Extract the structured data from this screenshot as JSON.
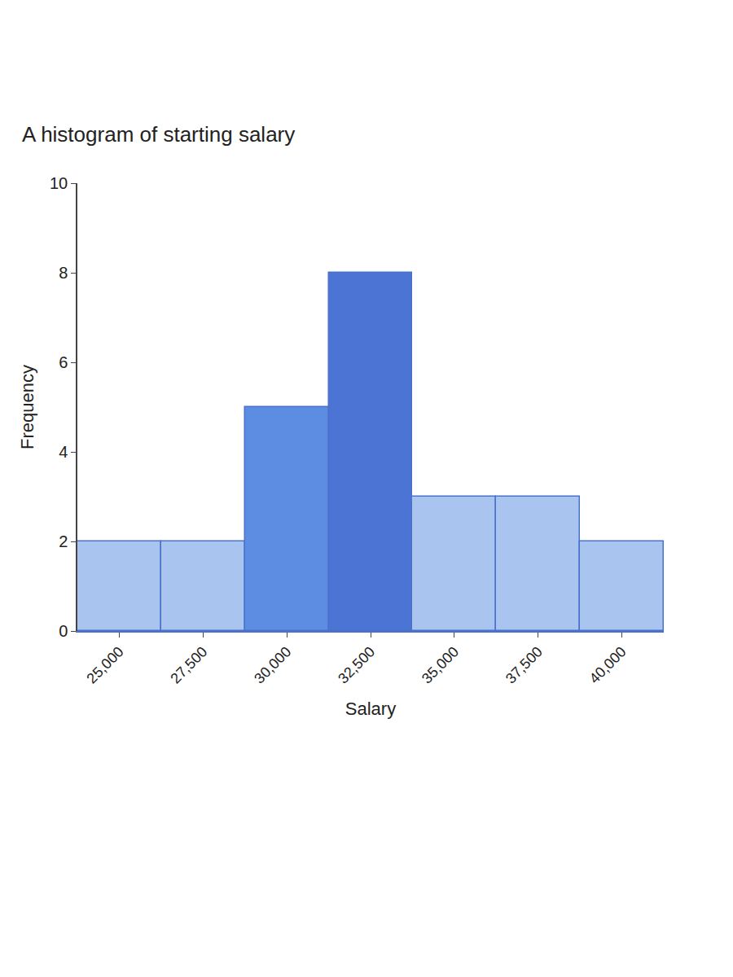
{
  "chart_data": {
    "type": "histogram",
    "title": "A histogram of starting salary",
    "x_label": "Salary",
    "y_label": "Frequency",
    "bins": [
      23750,
      26250,
      28750,
      31250,
      33750,
      36250,
      38750,
      41250
    ],
    "values": [
      2,
      2,
      5,
      8,
      3,
      3,
      2
    ],
    "colors": [
      "#a9c5ef",
      "#a9c5ef",
      "#5d8de2",
      "#4b74d4",
      "#a9c5ef",
      "#a9c5ef",
      "#a9c5ef"
    ],
    "xlim": [
      23750,
      41250
    ],
    "xticks": [
      {
        "value": 25000,
        "label": "25,000"
      },
      {
        "value": 27500,
        "label": "27,500"
      },
      {
        "value": 30000,
        "label": "30,000"
      },
      {
        "value": 32500,
        "label": "32,500"
      },
      {
        "value": 35000,
        "label": "35,000"
      },
      {
        "value": 37500,
        "label": "37,500"
      },
      {
        "value": 40000,
        "label": "40,000"
      }
    ],
    "ylim": [
      0,
      10
    ],
    "yticks": [
      0,
      2,
      4,
      6,
      8,
      10
    ],
    "grid": false
  }
}
